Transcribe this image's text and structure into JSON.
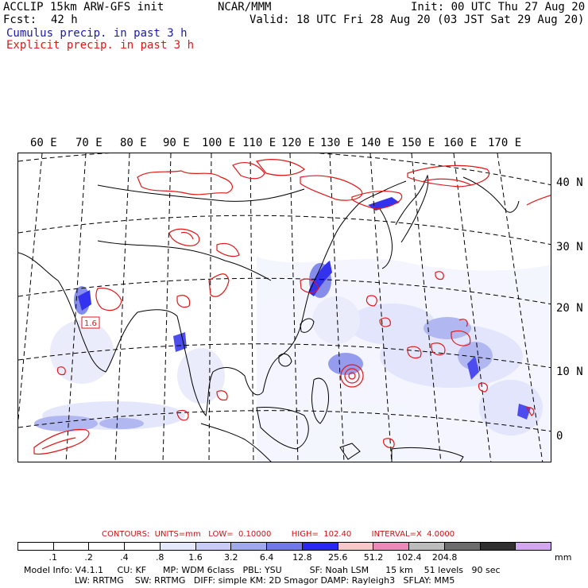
{
  "header": {
    "title": "ACCLIP 15km ARW-GFS init",
    "center": "NCAR/MMM",
    "init": "Init: 00 UTC Thu 27 Aug 20",
    "fcst_label": "Fcst:",
    "fcst_value": "42 h",
    "valid": "Valid: 18 UTC Fri 28 Aug 20 (03 JST Sat 29 Aug 20)",
    "cumulus_label": "Cumulus precip. in past 3 h",
    "explicit_label": "Explicit precip. in past 3 h"
  },
  "map": {
    "lon_labels": [
      "60 E",
      "70 E",
      "80 E",
      "90 E",
      "100 E",
      "110 E",
      "120 E",
      "130 E",
      "140 E",
      "150 E",
      "160 E",
      "170 E"
    ],
    "lat_labels": [
      "40 N",
      "30 N",
      "20 N",
      "10 N",
      "0"
    ],
    "contour_label": "1.6",
    "colors": {
      "explicit": "#e01818",
      "cumulus_light": "#c8d0f4",
      "cumulus_mid": "#6e78e6",
      "cumulus_dark": "#1010e8",
      "coast": "#000000",
      "grid": "#000000"
    }
  },
  "legend": {
    "contours_text": "CONTOURS:  UNITS=mm   LOW=  0.10000        HIGH=  102.40        INTERVAL=X  4.0000",
    "swatch_colors": [
      "#ffffff",
      "#ffffff",
      "#ffffff",
      "#ffffff",
      "#e6e8fc",
      "#c8ccf6",
      "#a0a8f0",
      "#7078ea",
      "#2828f2",
      "#f8c8c8",
      "#ee88b8",
      "#bcbcbc",
      "#6c6c6c",
      "#303030",
      "#d2a6f2"
    ],
    "ticks": [
      ".1",
      ".2",
      ".4",
      ".8",
      "1.6",
      "3.2",
      "6.4",
      "12.8",
      "25.6",
      "51.2",
      "102.4",
      "204.8"
    ],
    "units": "mm"
  },
  "model_info": {
    "line1": "Model Info: V4.1.1     CU: KF      MP: WDM 6class   PBL: YSU          SF: Noah LSM      15 km    51 levels   90 sec",
    "line2": "LW: RRTMG    SW: RRTMG   DIFF: simple KM: 2D Smagor DAMP: Rayleigh3   SFLAY: MM5"
  }
}
